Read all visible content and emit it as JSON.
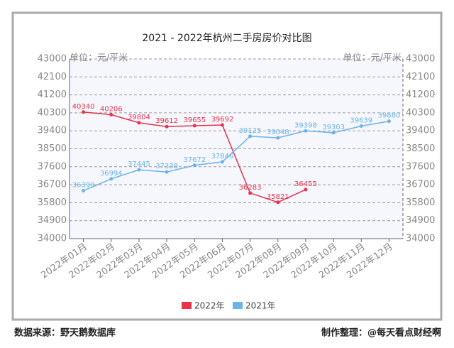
{
  "chart_data": {
    "type": "line",
    "title": "2021 - 2022年杭州二手房房价对比图",
    "y_unit_left": "单位：元/平米",
    "y_unit_right": "单位：元/平米",
    "categories": [
      "2022年01月",
      "2022年02月",
      "2022年03月",
      "2022年04月",
      "2022年05月",
      "2022年06月",
      "2022年07月",
      "2022年08月",
      "2022年09月",
      "2022年10月",
      "2022年11月",
      "2022年12月"
    ],
    "series": [
      {
        "name": "2022年",
        "color": "#e8334a",
        "values": [
          40340,
          40206,
          39804,
          39612,
          39655,
          39692,
          36283,
          35821,
          36455,
          null,
          null,
          null
        ]
      },
      {
        "name": "2021年",
        "color": "#6ab4e8",
        "values": [
          36399,
          36994,
          37445,
          37338,
          37672,
          37846,
          39125,
          39048,
          39398,
          39303,
          39639,
          39880
        ]
      }
    ],
    "ylim": [
      34000,
      43000
    ],
    "yticks": [
      34000,
      34900,
      35800,
      36700,
      37600,
      38500,
      39400,
      40300,
      41200,
      42100,
      43000
    ],
    "grid": true,
    "legend": "bottom",
    "source": "数据来源：野天鹅数据库",
    "credit": "制作整理：@每天看点财经啊"
  }
}
